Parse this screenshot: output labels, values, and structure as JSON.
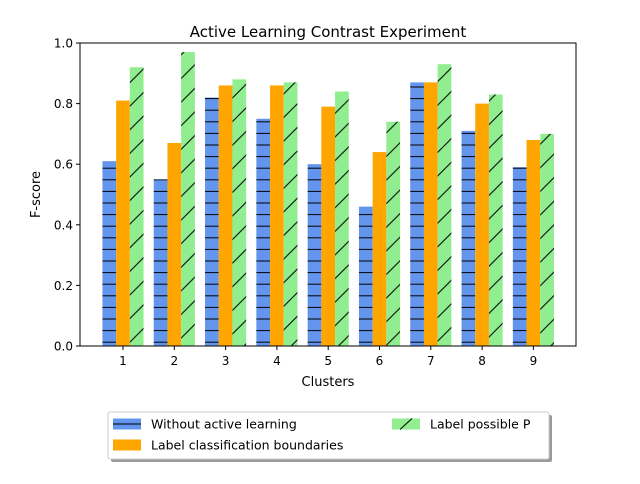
{
  "chart_data": {
    "type": "bar",
    "title": "Active Learning Contrast Experiment",
    "xlabel": "Clusters",
    "ylabel": "F-score",
    "categories": [
      "1",
      "2",
      "3",
      "4",
      "5",
      "6",
      "7",
      "8",
      "9"
    ],
    "ylim": [
      0,
      1.0
    ],
    "yticks": [
      "0.0",
      "0.2",
      "0.4",
      "0.6",
      "0.8",
      "1.0"
    ],
    "grid": false,
    "legend_position": "bottom-center",
    "series": [
      {
        "name": "Without active learning",
        "color": "#6495ed",
        "hatch": "horizontal",
        "values": [
          0.61,
          0.55,
          0.82,
          0.75,
          0.6,
          0.46,
          0.87,
          0.71,
          0.59
        ]
      },
      {
        "name": "Label classification boundaries",
        "color": "#ffa500",
        "hatch": "none",
        "values": [
          0.81,
          0.67,
          0.86,
          0.86,
          0.79,
          0.64,
          0.87,
          0.8,
          0.68
        ]
      },
      {
        "name": "Label possible P",
        "color": "#90ee90",
        "hatch": "diagonal",
        "values": [
          0.92,
          0.97,
          0.88,
          0.87,
          0.84,
          0.74,
          0.93,
          0.83,
          0.7
        ]
      }
    ]
  }
}
